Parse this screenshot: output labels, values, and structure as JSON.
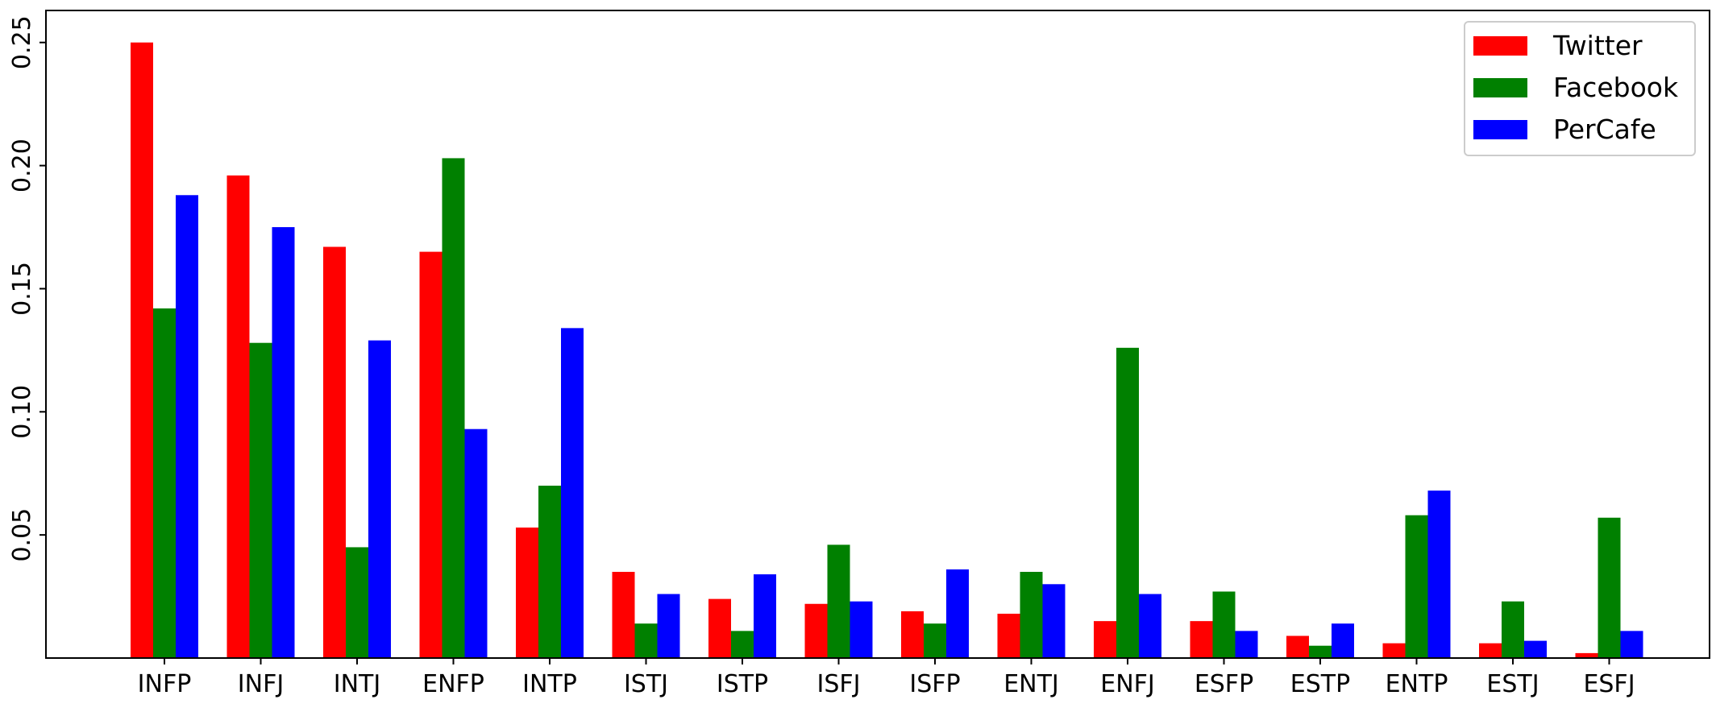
{
  "chart_data": {
    "type": "bar",
    "title": "",
    "xlabel": "",
    "ylabel": "",
    "categories": [
      "INFP",
      "INFJ",
      "INTJ",
      "ENFP",
      "INTP",
      "ISTJ",
      "ISTP",
      "ISFJ",
      "ISFP",
      "ENTJ",
      "ENFJ",
      "ESFP",
      "ESTP",
      "ENTP",
      "ESTJ",
      "ESFJ"
    ],
    "series": [
      {
        "name": "Twitter",
        "color": "#ff0000",
        "values": [
          0.25,
          0.196,
          0.167,
          0.165,
          0.053,
          0.035,
          0.024,
          0.022,
          0.019,
          0.018,
          0.015,
          0.015,
          0.009,
          0.006,
          0.006,
          0.002
        ]
      },
      {
        "name": "Facebook",
        "color": "#008000",
        "values": [
          0.142,
          0.128,
          0.045,
          0.203,
          0.07,
          0.014,
          0.011,
          0.046,
          0.014,
          0.035,
          0.126,
          0.027,
          0.005,
          0.058,
          0.023,
          0.057
        ]
      },
      {
        "name": "PerCafe",
        "color": "#0000ff",
        "values": [
          0.188,
          0.175,
          0.129,
          0.093,
          0.134,
          0.026,
          0.034,
          0.023,
          0.036,
          0.03,
          0.026,
          0.011,
          0.014,
          0.068,
          0.007,
          0.011
        ]
      }
    ],
    "ylim": [
      0,
      0.263
    ],
    "yticks": [
      "0.05",
      "0.10",
      "0.15",
      "0.20",
      "0.25"
    ],
    "grid": false,
    "legend": "top-right"
  }
}
